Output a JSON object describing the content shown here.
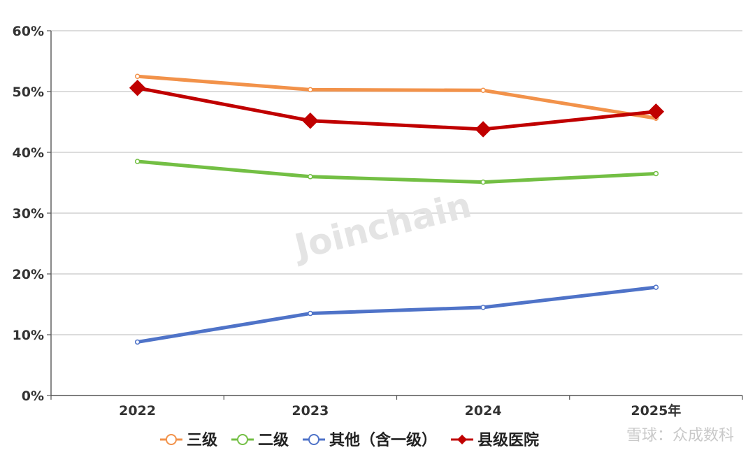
{
  "chart_data": {
    "type": "line",
    "categories": [
      "2022",
      "2023",
      "2024",
      "2025年"
    ],
    "ylim": [
      0,
      60
    ],
    "y_ticks": [
      0,
      10,
      20,
      30,
      40,
      50,
      60
    ],
    "y_tick_labels": [
      "0%",
      "10%",
      "20%",
      "30%",
      "40%",
      "50%",
      "60%"
    ],
    "grid": true,
    "legend_position": "bottom",
    "series": [
      {
        "name": "三级",
        "values": [
          52.5,
          50.3,
          50.2,
          45.6
        ],
        "color": "#f2924a",
        "marker": "circle"
      },
      {
        "name": "二级",
        "values": [
          38.5,
          36.0,
          35.1,
          36.5
        ],
        "color": "#73bf44",
        "marker": "circle"
      },
      {
        "name": "其他（含一级）",
        "values": [
          8.8,
          13.5,
          14.5,
          17.8
        ],
        "color": "#4f73c8",
        "marker": "circle"
      },
      {
        "name": "县级医院",
        "values": [
          50.6,
          45.2,
          43.8,
          46.7
        ],
        "color": "#c00000",
        "marker": "diamond"
      }
    ]
  },
  "watermark": "Joinchain",
  "corner_mark": "雪球：众成数科"
}
